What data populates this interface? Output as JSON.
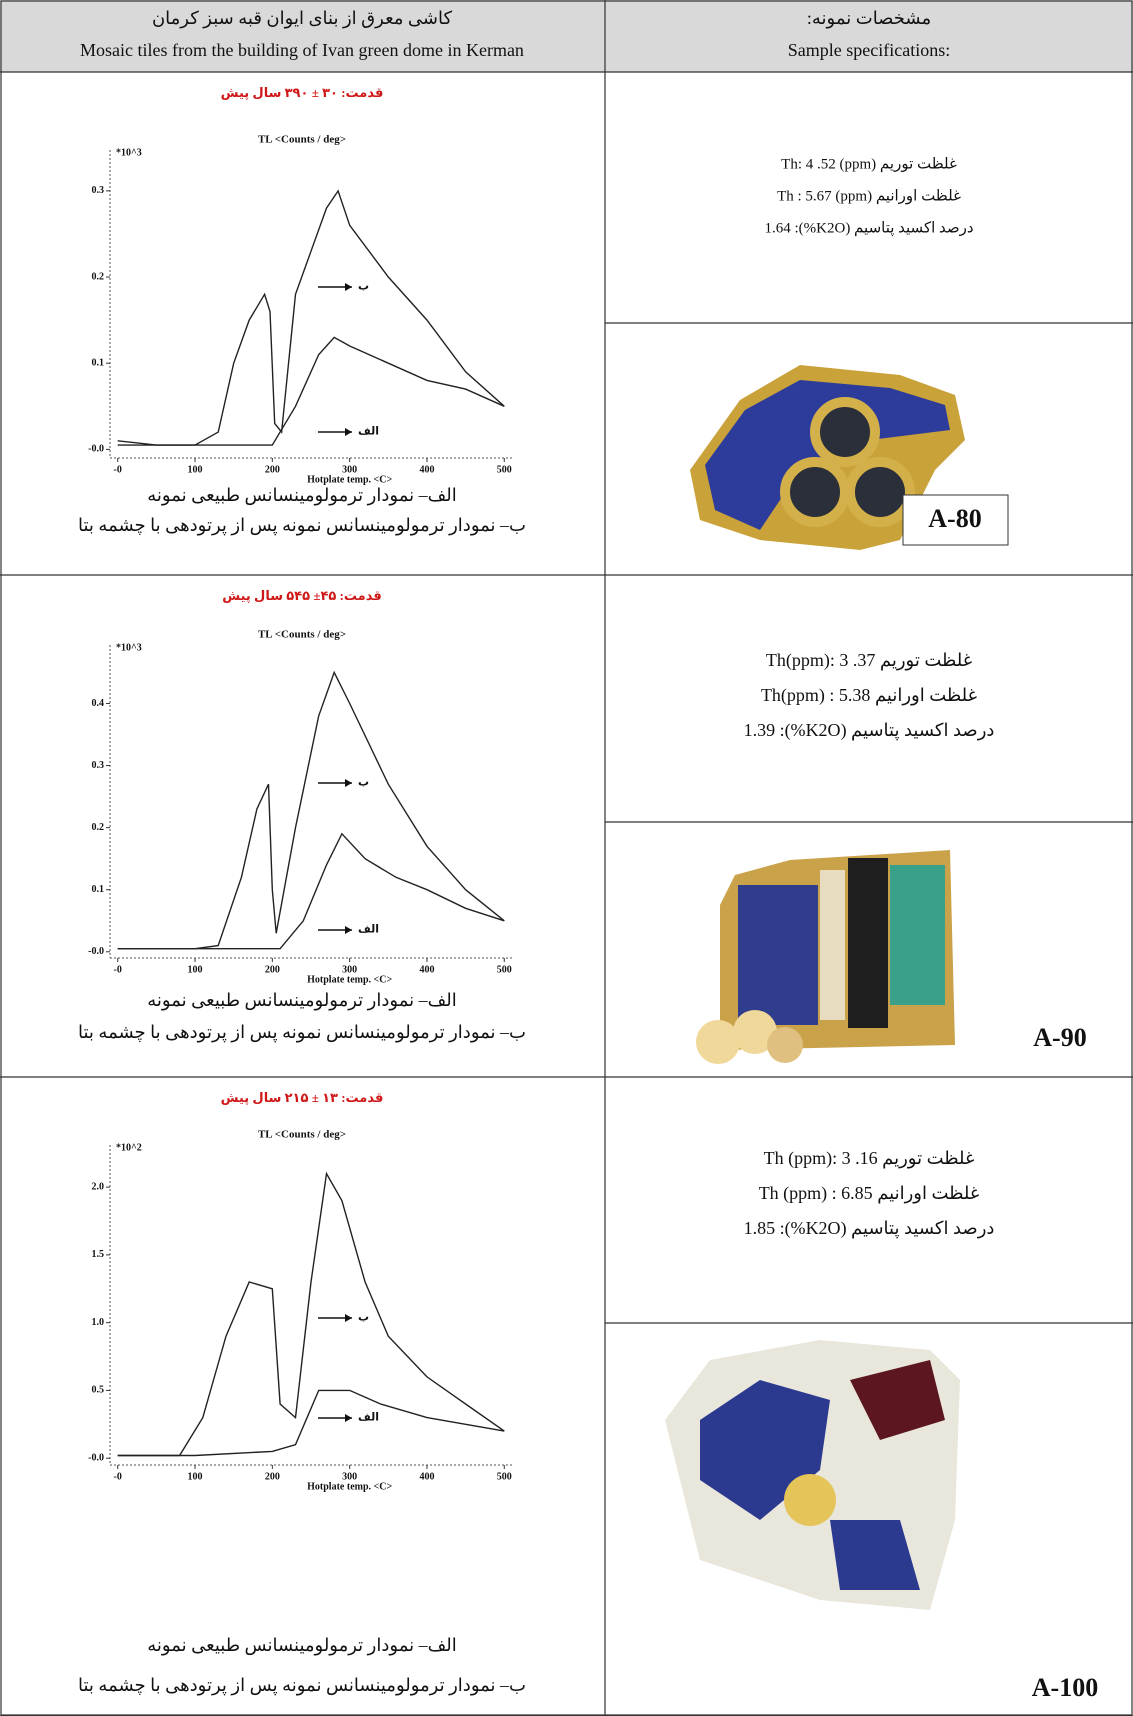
{
  "table": {
    "header": {
      "left": [
        "کاشی معرق از بنای ایوان قبه سبز کرمان",
        "Mosaic tiles from the building of Ivan green dome in Kerman"
      ],
      "right": [
        "مشخصات نمونه:",
        "Sample specifications:"
      ]
    },
    "rows": [
      {
        "captions": [
          "الف– نمودار ترمولومینسانس طبیعی نمونه",
          "ب– نمودار ترمولومینسانس نمونه پس از پرتودهی با چشمه بتا"
        ],
        "specs": [
          "غلظت توریم (ppm) Th: 4 .52",
          "غلظت اورانیم (ppm) Th : 5.67",
          "درصد اکسید پتاسیم (K2O%): 1.64"
        ],
        "sample": "A-80"
      },
      {
        "captions": [
          "الف– نمودار ترمولومینسانس طبیعی نمونه",
          "ب– نمودار ترمولومینسانس نمونه پس از پرتودهی با چشمه بتا"
        ],
        "specs": [
          "غلظت توریم Th(ppm): 3 .37",
          "غلظت اورانیم Th(ppm) : 5.38",
          "درصد اکسید پتاسیم (K2O%): 1.39"
        ],
        "sample": "A-90"
      },
      {
        "captions": [
          "الف– نمودار ترمولومینسانس طبیعی نمونه",
          "ب– نمودار ترمولومینسانس نمونه پس از پرتودهی با چشمه بتا"
        ],
        "specs": [
          "غلظت توریم Th (ppm): 3 .16",
          "غلظت اورانیم Th (ppm) : 6.85",
          "درصد اکسید پتاسیم (K2O%): 1.85"
        ],
        "sample": "A-100"
      }
    ]
  },
  "chart_data": [
    {
      "type": "line",
      "title": "قدمت: ۳۰ ± ۳۹۰ سال پیش",
      "ylabel": "TL <Counts / deg>",
      "multiplier": "*10^3",
      "xlabel": "Hotplate temp. <C>",
      "xlim": [
        -10,
        510
      ],
      "ylim": [
        -0.01,
        0.33
      ],
      "xticks": [
        {
          "value": 0,
          "label": "-0"
        },
        100,
        200,
        300,
        400,
        500
      ],
      "yticks": [
        {
          "value": 0,
          "label": "-0.0"
        },
        0.1,
        0.2,
        0.3
      ],
      "series": [
        {
          "name": "ب",
          "color": "#222222",
          "x": [
            0,
            50,
            100,
            130,
            150,
            170,
            190,
            197,
            203,
            212,
            230,
            250,
            270,
            285,
            300,
            350,
            400,
            450,
            500
          ],
          "values": [
            0.01,
            0.005,
            0.005,
            0.02,
            0.1,
            0.15,
            0.18,
            0.16,
            0.03,
            0.02,
            0.18,
            0.23,
            0.28,
            0.3,
            0.26,
            0.2,
            0.15,
            0.09,
            0.05
          ]
        },
        {
          "name": "الف",
          "color": "#222222",
          "x": [
            0,
            100,
            200,
            230,
            260,
            280,
            300,
            350,
            400,
            450,
            500
          ],
          "values": [
            0.005,
            0.005,
            0.005,
            0.05,
            0.11,
            0.13,
            0.12,
            0.1,
            0.08,
            0.07,
            0.05
          ]
        }
      ]
    },
    {
      "type": "line",
      "title": "قدمت: ۴۵± ۵۴۵ سال پیش",
      "ylabel": "TL <Counts / deg>",
      "multiplier": "*10^3",
      "xlabel": "Hotplate temp. <C>",
      "xlim": [
        -10,
        510
      ],
      "ylim": [
        -0.01,
        0.47
      ],
      "xticks": [
        {
          "value": 0,
          "label": "-0"
        },
        100,
        200,
        300,
        400,
        500
      ],
      "yticks": [
        {
          "value": 0,
          "label": "-0.0"
        },
        0.1,
        0.2,
        0.3,
        0.4
      ],
      "series": [
        {
          "name": "ب",
          "color": "#222222",
          "x": [
            0,
            100,
            130,
            160,
            180,
            195,
            200,
            205,
            230,
            260,
            280,
            300,
            350,
            400,
            450,
            500
          ],
          "values": [
            0.005,
            0.005,
            0.01,
            0.12,
            0.23,
            0.27,
            0.1,
            0.03,
            0.2,
            0.38,
            0.45,
            0.4,
            0.27,
            0.17,
            0.1,
            0.05
          ]
        },
        {
          "name": "الف",
          "color": "#222222",
          "x": [
            0,
            100,
            210,
            240,
            270,
            290,
            320,
            360,
            400,
            450,
            500
          ],
          "values": [
            0.005,
            0.005,
            0.005,
            0.05,
            0.14,
            0.19,
            0.15,
            0.12,
            0.1,
            0.07,
            0.05
          ]
        }
      ]
    },
    {
      "type": "line",
      "title": "قدمت: ۱۳ ± ۲۱۵ سال پیش",
      "ylabel": "TL <Counts / deg>",
      "multiplier": "*10^2",
      "xlabel": "Hotplate temp. <C>",
      "xlim": [
        -10,
        510
      ],
      "ylim": [
        -0.05,
        2.2
      ],
      "xticks": [
        {
          "value": 0,
          "label": "-0"
        },
        100,
        200,
        300,
        400,
        500
      ],
      "yticks": [
        {
          "value": 0,
          "label": "-0.0"
        },
        0.5,
        {
          "value": 1,
          "label": "1.0"
        },
        1.5,
        {
          "value": 2,
          "label": "2.0"
        }
      ],
      "series": [
        {
          "name": "ب",
          "color": "#222222",
          "x": [
            0,
            80,
            110,
            140,
            170,
            200,
            210,
            230,
            250,
            270,
            290,
            320,
            350,
            400,
            450,
            500
          ],
          "values": [
            0.02,
            0.02,
            0.3,
            0.9,
            1.3,
            1.25,
            0.4,
            0.3,
            1.3,
            2.1,
            1.9,
            1.3,
            0.9,
            0.6,
            0.4,
            0.2
          ]
        },
        {
          "name": "الف",
          "color": "#222222",
          "x": [
            0,
            100,
            200,
            230,
            260,
            300,
            340,
            400,
            450,
            500
          ],
          "values": [
            0.02,
            0.02,
            0.05,
            0.1,
            0.5,
            0.5,
            0.4,
            0.3,
            0.25,
            0.2
          ]
        }
      ]
    }
  ]
}
